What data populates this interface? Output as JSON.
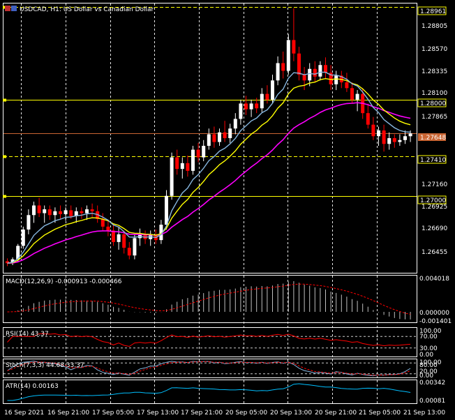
{
  "chart_title": {
    "symbol": "USDCAD",
    "timeframe": "H1",
    "description": "US Dollar vs Canadian Dollar",
    "full": "USDCAD, H1:  US Dollar vs Canadian Dollar"
  },
  "colors": {
    "background": "#000000",
    "grid": "#ffffff",
    "bull_candle": "#ffffff",
    "bear_candle": "#ff0000",
    "ma_fast": "#87b7e0",
    "ma_mid": "#ffff00",
    "ma_slow": "#ff00ff",
    "hline": "#ffff00",
    "bid_line": "#c86432",
    "macd_hist": "#c0c0c0",
    "macd_signal": "#ff0000",
    "rsi": "#ff0000",
    "stoch_main": "#87b7e0",
    "stoch_signal": "#ff0000",
    "atr": "#00bfff"
  },
  "price_axis": {
    "ticks": [
      "1.28805",
      "1.28570",
      "1.28335",
      "1.28100",
      "1.27865",
      "1.27160",
      "1.26925",
      "1.26690",
      "1.26455"
    ],
    "range": [
      1.262,
      1.29
    ]
  },
  "price_labels": [
    {
      "value": "1.28961",
      "style": "hline"
    },
    {
      "value": "1.28000",
      "style": "hline"
    },
    {
      "value": "1.27648",
      "style": "bid"
    },
    {
      "value": "1.27410",
      "style": "hline"
    },
    {
      "value": "1.27000",
      "style": "hline"
    }
  ],
  "horizontal_lines": [
    {
      "price": 1.28961,
      "dash": true
    },
    {
      "price": 1.28,
      "dash": false
    },
    {
      "price": 1.2741,
      "dash": true
    },
    {
      "price": 1.27,
      "dash": false
    }
  ],
  "time_axis": [
    "16 Sep 2021",
    "16 Sep 21:00",
    "17 Sep 05:00",
    "17 Sep 13:00",
    "17 Sep 21:00",
    "20 Sep 05:00",
    "20 Sep 13:00",
    "20 Sep 21:00",
    "21 Sep 05:00",
    "21 Sep 13:00"
  ],
  "panels": {
    "macd": {
      "label": "MACD(12,26,9) -0.000913 -0.000466",
      "ticks": [
        "0.004018",
        "0.000000",
        "-0.001401"
      ]
    },
    "rsi": {
      "label": "RSI(14) 43.37",
      "ticks": [
        "100.00",
        "70.00",
        "30.00",
        "0.00"
      ]
    },
    "stoch": {
      "label": "Stoch(7,3,3) 44.68 33.37",
      "ticks": [
        "100.00",
        "80.00",
        "20.00",
        "0.00"
      ]
    },
    "atr": {
      "label": "ATR(14) 0.00163",
      "ticks": [
        "0.00342",
        "0.00081"
      ]
    }
  },
  "chart_data": {
    "type": "candlestick",
    "candles": [
      [
        1.2632,
        1.2635,
        1.2627,
        1.263
      ],
      [
        1.263,
        1.2636,
        1.2628,
        1.2634
      ],
      [
        1.2634,
        1.265,
        1.2632,
        1.2648
      ],
      [
        1.2648,
        1.2668,
        1.2645,
        1.2665
      ],
      [
        1.2665,
        1.2686,
        1.266,
        1.268
      ],
      [
        1.268,
        1.2694,
        1.2672,
        1.269
      ],
      [
        1.269,
        1.2698,
        1.2678,
        1.2682
      ],
      [
        1.2682,
        1.269,
        1.2672,
        1.2686
      ],
      [
        1.2686,
        1.269,
        1.2675,
        1.268
      ],
      [
        1.268,
        1.2688,
        1.2672,
        1.2684
      ],
      [
        1.2684,
        1.269,
        1.2676,
        1.2681
      ],
      [
        1.2681,
        1.2688,
        1.2674,
        1.2685
      ],
      [
        1.2685,
        1.269,
        1.2676,
        1.2679
      ],
      [
        1.2679,
        1.2688,
        1.2672,
        1.2684
      ],
      [
        1.2684,
        1.2688,
        1.2676,
        1.2682
      ],
      [
        1.2682,
        1.269,
        1.2675,
        1.2686
      ],
      [
        1.2686,
        1.2692,
        1.2678,
        1.2684
      ],
      [
        1.2684,
        1.269,
        1.2672,
        1.2676
      ],
      [
        1.2676,
        1.2682,
        1.2664,
        1.2668
      ],
      [
        1.2668,
        1.2674,
        1.2658,
        1.2664
      ],
      [
        1.2664,
        1.267,
        1.2648,
        1.2652
      ],
      [
        1.2652,
        1.2668,
        1.2644,
        1.266
      ],
      [
        1.266,
        1.2664,
        1.264,
        1.2646
      ],
      [
        1.2646,
        1.2652,
        1.2634,
        1.2638
      ],
      [
        1.2638,
        1.266,
        1.2634,
        1.2656
      ],
      [
        1.2656,
        1.2666,
        1.2648,
        1.266
      ],
      [
        1.266,
        1.2664,
        1.265,
        1.2655
      ],
      [
        1.2655,
        1.2664,
        1.2648,
        1.2659
      ],
      [
        1.2659,
        1.2665,
        1.265,
        1.2654
      ],
      [
        1.2654,
        1.2675,
        1.265,
        1.267
      ],
      [
        1.267,
        1.2706,
        1.2665,
        1.27
      ],
      [
        1.27,
        1.2745,
        1.2696,
        1.274
      ],
      [
        1.274,
        1.2748,
        1.2722,
        1.2728
      ],
      [
        1.2728,
        1.274,
        1.2718,
        1.2734
      ],
      [
        1.2734,
        1.2742,
        1.272,
        1.2726
      ],
      [
        1.2726,
        1.2752,
        1.2722,
        1.2748
      ],
      [
        1.2748,
        1.2755,
        1.2735,
        1.274
      ],
      [
        1.274,
        1.2758,
        1.2736,
        1.2752
      ],
      [
        1.2752,
        1.277,
        1.2748,
        1.2764
      ],
      [
        1.2764,
        1.2772,
        1.275,
        1.2756
      ],
      [
        1.2756,
        1.277,
        1.2752,
        1.2766
      ],
      [
        1.2766,
        1.2778,
        1.2756,
        1.276
      ],
      [
        1.276,
        1.2775,
        1.2755,
        1.277
      ],
      [
        1.277,
        1.2786,
        1.2764,
        1.278
      ],
      [
        1.278,
        1.28,
        1.2774,
        1.2796
      ],
      [
        1.2796,
        1.2804,
        1.2784,
        1.279
      ],
      [
        1.279,
        1.28,
        1.2782,
        1.2796
      ],
      [
        1.2796,
        1.2802,
        1.2786,
        1.2791
      ],
      [
        1.2791,
        1.2812,
        1.2787,
        1.2806
      ],
      [
        1.2806,
        1.2815,
        1.2796,
        1.28
      ],
      [
        1.28,
        1.2826,
        1.2796,
        1.282
      ],
      [
        1.282,
        1.2845,
        1.2815,
        1.2838
      ],
      [
        1.2838,
        1.285,
        1.2822,
        1.283
      ],
      [
        1.283,
        1.2868,
        1.2826,
        1.2862
      ],
      [
        1.2862,
        1.2895,
        1.284,
        1.2848
      ],
      [
        1.2848,
        1.2855,
        1.282,
        1.2826
      ],
      [
        1.2826,
        1.2834,
        1.281,
        1.282
      ],
      [
        1.282,
        1.2838,
        1.2814,
        1.2832
      ],
      [
        1.2832,
        1.284,
        1.2818,
        1.2824
      ],
      [
        1.2824,
        1.284,
        1.282,
        1.2836
      ],
      [
        1.2836,
        1.2844,
        1.2822,
        1.2828
      ],
      [
        1.2828,
        1.2836,
        1.281,
        1.2816
      ],
      [
        1.2816,
        1.283,
        1.281,
        1.2825
      ],
      [
        1.2825,
        1.283,
        1.2812,
        1.2818
      ],
      [
        1.2818,
        1.2828,
        1.2808,
        1.2812
      ],
      [
        1.2812,
        1.2818,
        1.2796,
        1.28
      ],
      [
        1.28,
        1.281,
        1.2788,
        1.2806
      ],
      [
        1.2806,
        1.2812,
        1.278,
        1.2786
      ],
      [
        1.2786,
        1.2796,
        1.277,
        1.2774
      ],
      [
        1.2774,
        1.2782,
        1.2758,
        1.2762
      ],
      [
        1.2762,
        1.2772,
        1.2752,
        1.2768
      ],
      [
        1.2768,
        1.2774,
        1.2746,
        1.2754
      ],
      [
        1.2754,
        1.2766,
        1.2748,
        1.276
      ],
      [
        1.276,
        1.2764,
        1.275,
        1.2756
      ],
      [
        1.2756,
        1.2764,
        1.2752,
        1.2758
      ],
      [
        1.2758,
        1.2768,
        1.2754,
        1.2762
      ],
      [
        1.2762,
        1.2768,
        1.2756,
        1.2765
      ]
    ],
    "ma_fast_period": 8,
    "ma_mid_period": 13,
    "ma_slow_period": 30
  }
}
